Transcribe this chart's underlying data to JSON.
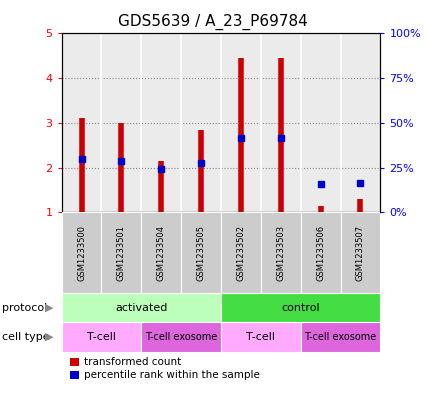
{
  "title": "GDS5639 / A_23_P69784",
  "samples": [
    "GSM1233500",
    "GSM1233501",
    "GSM1233504",
    "GSM1233505",
    "GSM1233502",
    "GSM1233503",
    "GSM1233506",
    "GSM1233507"
  ],
  "transformed_counts": [
    3.1,
    3.0,
    2.15,
    2.85,
    4.45,
    4.45,
    1.15,
    1.3
  ],
  "percentile_ranks": [
    2.2,
    2.15,
    1.97,
    2.1,
    2.65,
    2.65,
    1.63,
    1.65
  ],
  "ylim": [
    1,
    5
  ],
  "yticks_left": [
    1,
    2,
    3,
    4,
    5
  ],
  "yticks_right_labels": [
    "0%",
    "25%",
    "50%",
    "75%",
    "100%"
  ],
  "bar_color": "#cc0000",
  "dot_color": "#0000cc",
  "protocol_groups": [
    {
      "label": "activated",
      "start": 0,
      "end": 4,
      "color": "#bbffbb"
    },
    {
      "label": "control",
      "start": 4,
      "end": 8,
      "color": "#44dd44"
    }
  ],
  "cell_type_groups": [
    {
      "label": "T-cell",
      "start": 0,
      "end": 2,
      "color": "#ffaaff"
    },
    {
      "label": "T-cell exosome",
      "start": 2,
      "end": 4,
      "color": "#dd66dd"
    },
    {
      "label": "T-cell",
      "start": 4,
      "end": 6,
      "color": "#ffaaff"
    },
    {
      "label": "T-cell exosome",
      "start": 6,
      "end": 8,
      "color": "#dd66dd"
    }
  ],
  "legend_red_label": "transformed count",
  "legend_blue_label": "percentile rank within the sample",
  "protocol_label": "protocol",
  "cell_type_label": "cell type",
  "plot_bg_color": "#ebebeb",
  "sample_row_color": "#cccccc",
  "title_fontsize": 11,
  "tick_fontsize": 8,
  "label_fontsize": 8,
  "sample_fontsize": 6,
  "legend_fontsize": 7.5
}
